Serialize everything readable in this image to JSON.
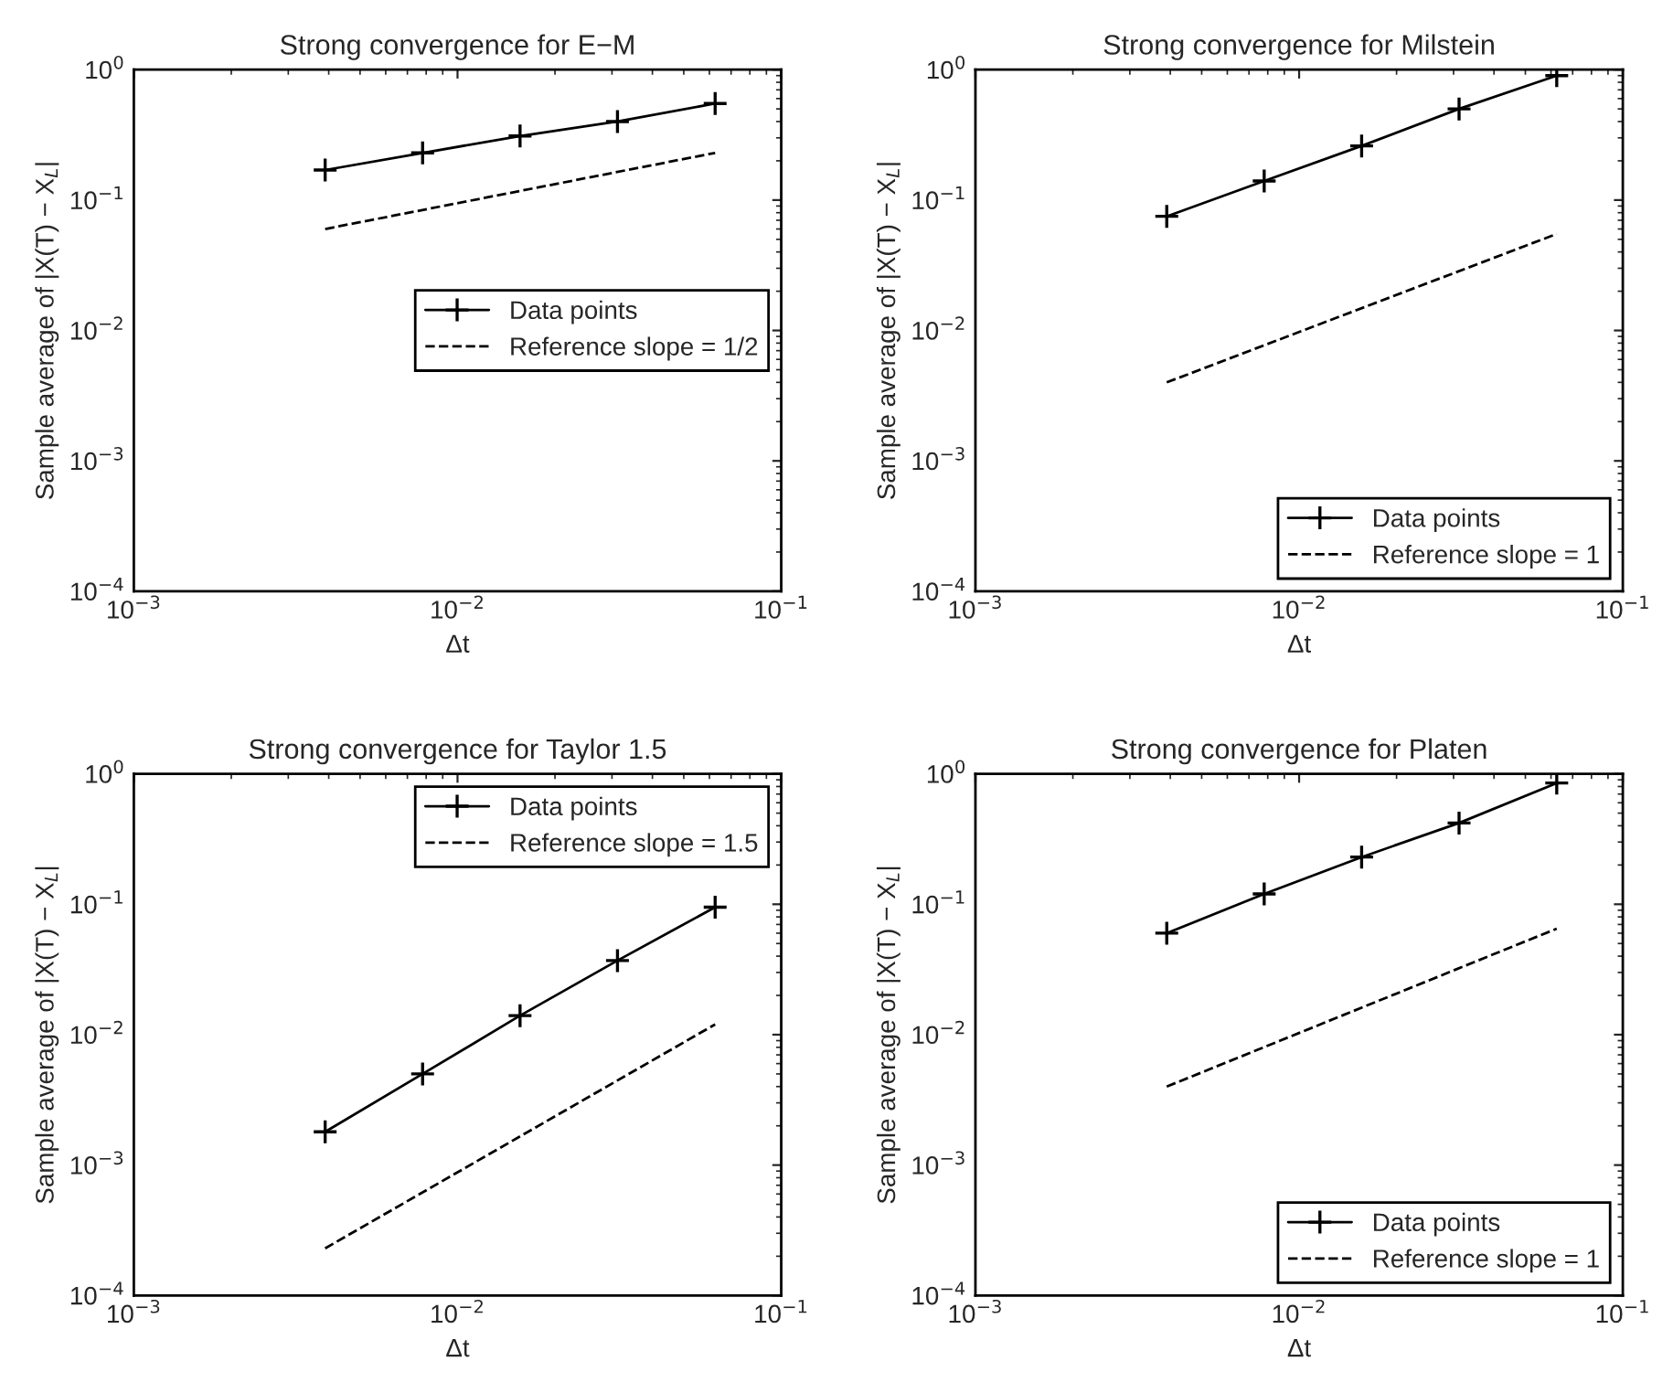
{
  "chart_data": [
    {
      "type": "line",
      "title": "Strong convergence for E−M",
      "xlabel": "Δt",
      "ylabel": "Sample average of |X(T) − X$_{L}$|",
      "log": "xy",
      "grid": false,
      "legend": "center right",
      "xlim": [
        0.001,
        0.1
      ],
      "ylim": [
        0.0001,
        1
      ],
      "xticks": [
        {
          "value": 0.001,
          "label": "10$^{−3}$"
        },
        {
          "value": 0.01,
          "label": "10$^{−2}$"
        },
        {
          "value": 0.1,
          "label": "10$^{−1}$"
        }
      ],
      "yticks": [
        {
          "value": 0.0001,
          "label": "10$^{−4}$"
        },
        {
          "value": 0.001,
          "label": "10$^{−3}$"
        },
        {
          "value": 0.01,
          "label": "10$^{−2}$"
        },
        {
          "value": 0.1,
          "label": "10$^{−1}$"
        },
        {
          "value": 1,
          "label": "10$^{0}$"
        }
      ],
      "series": [
        {
          "name": "Data points",
          "color": "#000000",
          "marker": "cross",
          "line_style": "solid",
          "x": [
            0.0039,
            0.0078,
            0.0156,
            0.0312,
            0.0625
          ],
          "values": [
            0.17,
            0.23,
            0.31,
            0.4,
            0.55
          ]
        },
        {
          "name": "Reference slope = 1/2",
          "color": "#000000",
          "marker": "none",
          "line_style": "dashed",
          "x": [
            0.0039,
            0.0625
          ],
          "values": [
            0.06,
            0.23
          ]
        }
      ]
    },
    {
      "type": "line",
      "title": "Strong convergence for Milstein",
      "xlabel": "Δt",
      "ylabel": "Sample average of |X(T) − X$_{L}$|",
      "log": "xy",
      "grid": false,
      "legend": "lower right",
      "xlim": [
        0.001,
        0.1
      ],
      "ylim": [
        0.0001,
        1
      ],
      "xticks": [
        {
          "value": 0.001,
          "label": "10$^{−3}$"
        },
        {
          "value": 0.01,
          "label": "10$^{−2}$"
        },
        {
          "value": 0.1,
          "label": "10$^{−1}$"
        }
      ],
      "yticks": [
        {
          "value": 0.0001,
          "label": "10$^{−4}$"
        },
        {
          "value": 0.001,
          "label": "10$^{−3}$"
        },
        {
          "value": 0.01,
          "label": "10$^{−2}$"
        },
        {
          "value": 0.1,
          "label": "10$^{−1}$"
        },
        {
          "value": 1,
          "label": "10$^{0}$"
        }
      ],
      "series": [
        {
          "name": "Data points",
          "color": "#000000",
          "marker": "cross",
          "line_style": "solid",
          "x": [
            0.0039,
            0.0078,
            0.0156,
            0.0312,
            0.0625
          ],
          "values": [
            0.075,
            0.14,
            0.26,
            0.5,
            0.9
          ]
        },
        {
          "name": "Reference slope = 1",
          "color": "#000000",
          "marker": "none",
          "line_style": "dashed",
          "x": [
            0.0039,
            0.0625
          ],
          "values": [
            0.004,
            0.055
          ]
        }
      ]
    },
    {
      "type": "line",
      "title": "Strong convergence for Taylor 1.5",
      "xlabel": "Δt",
      "ylabel": "Sample average of |X(T) − X$_{L}$|",
      "log": "xy",
      "grid": false,
      "legend": "upper right",
      "xlim": [
        0.001,
        0.1
      ],
      "ylim": [
        0.0001,
        1
      ],
      "xticks": [
        {
          "value": 0.001,
          "label": "10$^{−3}$"
        },
        {
          "value": 0.01,
          "label": "10$^{−2}$"
        },
        {
          "value": 0.1,
          "label": "10$^{−1}$"
        }
      ],
      "yticks": [
        {
          "value": 0.0001,
          "label": "10$^{−4}$"
        },
        {
          "value": 0.001,
          "label": "10$^{−3}$"
        },
        {
          "value": 0.01,
          "label": "10$^{−2}$"
        },
        {
          "value": 0.1,
          "label": "10$^{−1}$"
        },
        {
          "value": 1,
          "label": "10$^{0}$"
        }
      ],
      "series": [
        {
          "name": "Data points",
          "color": "#000000",
          "marker": "cross",
          "line_style": "solid",
          "x": [
            0.0039,
            0.0078,
            0.0156,
            0.0312,
            0.0625
          ],
          "values": [
            0.0018,
            0.005,
            0.014,
            0.037,
            0.095
          ]
        },
        {
          "name": "Reference slope = 1.5",
          "color": "#000000",
          "marker": "none",
          "line_style": "dashed",
          "x": [
            0.0039,
            0.0625
          ],
          "values": [
            0.00023,
            0.012
          ]
        }
      ]
    },
    {
      "type": "line",
      "title": "Strong convergence for Platen",
      "xlabel": "Δt",
      "ylabel": "Sample average of |X(T) − X$_{L}$|",
      "log": "xy",
      "grid": false,
      "legend": "lower right",
      "xlim": [
        0.001,
        0.1
      ],
      "ylim": [
        0.0001,
        1
      ],
      "xticks": [
        {
          "value": 0.001,
          "label": "10$^{−3}$"
        },
        {
          "value": 0.01,
          "label": "10$^{−2}$"
        },
        {
          "value": 0.1,
          "label": "10$^{−1}$"
        }
      ],
      "yticks": [
        {
          "value": 0.0001,
          "label": "10$^{−4}$"
        },
        {
          "value": 0.001,
          "label": "10$^{−3}$"
        },
        {
          "value": 0.01,
          "label": "10$^{−2}$"
        },
        {
          "value": 0.1,
          "label": "10$^{−1}$"
        },
        {
          "value": 1,
          "label": "10$^{0}$"
        }
      ],
      "series": [
        {
          "name": "Data points",
          "color": "#000000",
          "marker": "cross",
          "line_style": "solid",
          "x": [
            0.0039,
            0.0078,
            0.0156,
            0.0312,
            0.0625
          ],
          "values": [
            0.06,
            0.12,
            0.23,
            0.42,
            0.85
          ]
        },
        {
          "name": "Reference slope = 1",
          "color": "#000000",
          "marker": "none",
          "line_style": "dashed",
          "x": [
            0.0039,
            0.0625
          ],
          "values": [
            0.004,
            0.065
          ]
        }
      ]
    }
  ]
}
